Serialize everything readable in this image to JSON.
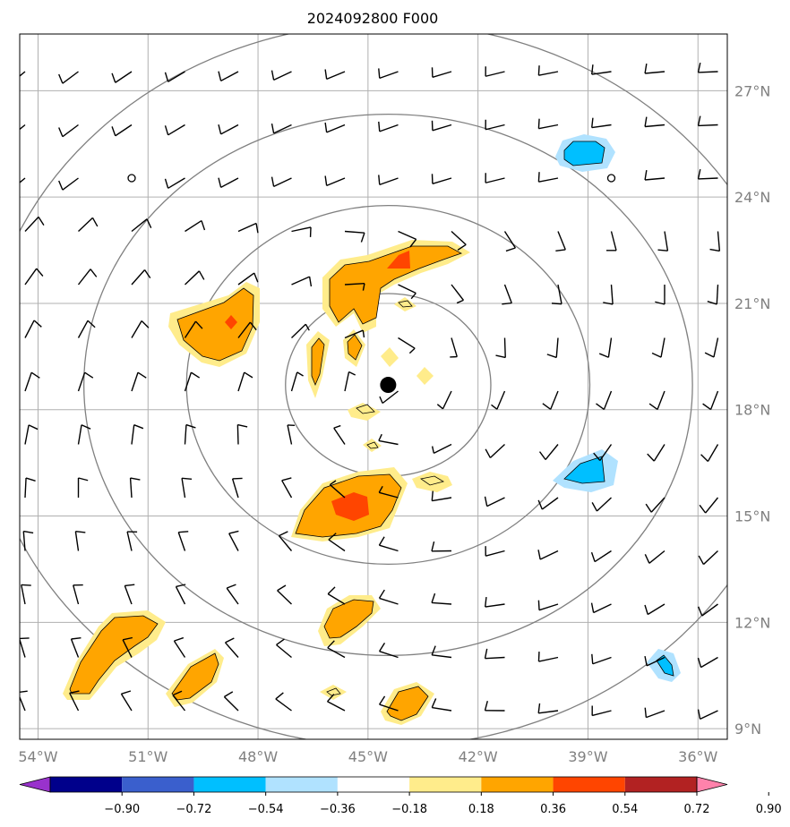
{
  "title": "2024092800 F000",
  "map": {
    "lon_range": [
      -54.5,
      -35.2
    ],
    "lat_range": [
      8.7,
      28.6
    ],
    "lon_ticks": [
      "54°W",
      "51°W",
      "48°W",
      "45°W",
      "42°W",
      "39°W",
      "36°W"
    ],
    "lat_ticks": [
      "27°N",
      "24°N",
      "21°N",
      "18°N",
      "15°N",
      "12°N",
      "9°N"
    ],
    "center_marker": {
      "lon": -44.45,
      "lat": 18.7
    },
    "range_rings_lon_extent": [
      2.8,
      5.5,
      8.3,
      11.1
    ],
    "colors": {
      "grid": "#b0b0b0",
      "rings": "#808080",
      "frame": "#000000",
      "barbs": "#000000"
    }
  },
  "colorbar": {
    "tick_labels": [
      "−0.90",
      "−0.72",
      "−0.54",
      "−0.36",
      "−0.18",
      "0.18",
      "0.36",
      "0.54",
      "0.72",
      "0.90"
    ],
    "colors": [
      "#9932cc",
      "#00008b",
      "#3a5fcd",
      "#00bfff",
      "#b0e2ff",
      "#ffffff",
      "#ffec8b",
      "#ffa500",
      "#ff4500",
      "#b22222",
      "#ff82ab"
    ]
  }
}
